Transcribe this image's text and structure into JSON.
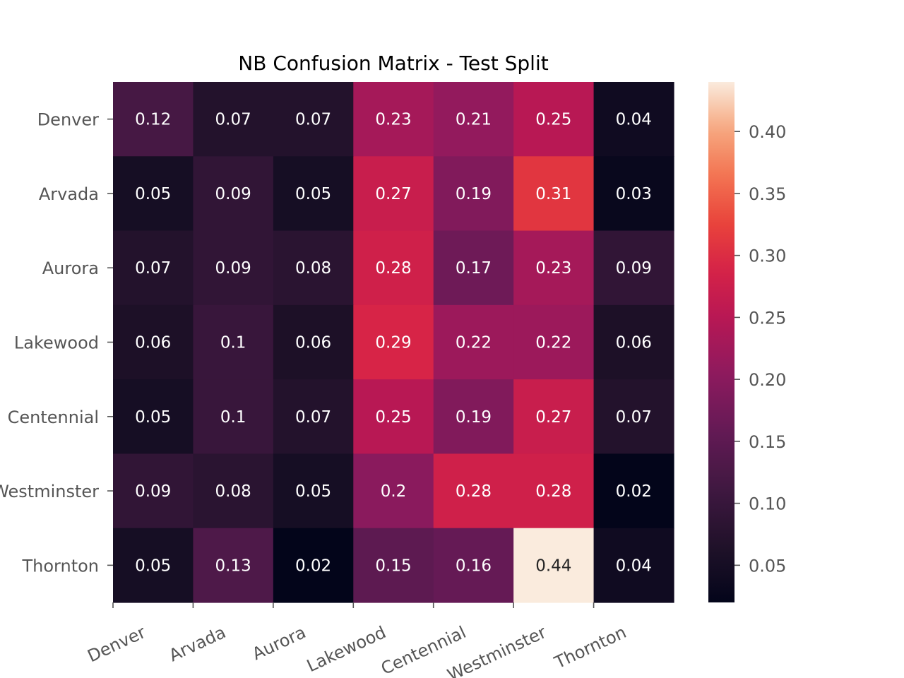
{
  "chart_data": {
    "type": "heatmap",
    "title": "NB Confusion Matrix - Test Split",
    "xlabel": "",
    "ylabel": "",
    "x_categories": [
      "Denver",
      "Arvada",
      "Aurora",
      "Lakewood",
      "Centennial",
      "Westminster",
      "Thornton"
    ],
    "y_categories": [
      "Denver",
      "Arvada",
      "Aurora",
      "Lakewood",
      "Centennial",
      "Westminster",
      "Thornton"
    ],
    "values": [
      [
        0.12,
        0.07,
        0.07,
        0.23,
        0.21,
        0.25,
        0.04
      ],
      [
        0.05,
        0.09,
        0.05,
        0.27,
        0.19,
        0.31,
        0.03
      ],
      [
        0.07,
        0.09,
        0.08,
        0.28,
        0.17,
        0.23,
        0.09
      ],
      [
        0.06,
        0.1,
        0.06,
        0.29,
        0.22,
        0.22,
        0.06
      ],
      [
        0.05,
        0.1,
        0.07,
        0.25,
        0.19,
        0.27,
        0.07
      ],
      [
        0.09,
        0.08,
        0.05,
        0.2,
        0.28,
        0.28,
        0.02
      ],
      [
        0.05,
        0.13,
        0.02,
        0.15,
        0.16,
        0.44,
        0.04
      ]
    ],
    "annotations": [
      [
        "0.12",
        "0.07",
        "0.07",
        "0.23",
        "0.21",
        "0.25",
        "0.04"
      ],
      [
        "0.05",
        "0.09",
        "0.05",
        "0.27",
        "0.19",
        "0.31",
        "0.03"
      ],
      [
        "0.07",
        "0.09",
        "0.08",
        "0.28",
        "0.17",
        "0.23",
        "0.09"
      ],
      [
        "0.06",
        "0.1",
        "0.06",
        "0.29",
        "0.22",
        "0.22",
        "0.06"
      ],
      [
        "0.05",
        "0.1",
        "0.07",
        "0.25",
        "0.19",
        "0.27",
        "0.07"
      ],
      [
        "0.09",
        "0.08",
        "0.05",
        "0.2",
        "0.28",
        "0.28",
        "0.02"
      ],
      [
        "0.05",
        "0.13",
        "0.02",
        "0.15",
        "0.16",
        "0.44",
        "0.04"
      ]
    ],
    "colormap": "rocket",
    "color_range": [
      0.02,
      0.44
    ],
    "colorbar_ticks": [
      0.05,
      0.1,
      0.15,
      0.2,
      0.25,
      0.3,
      0.35,
      0.4
    ],
    "colorbar_tick_labels": [
      "0.05",
      "0.10",
      "0.15",
      "0.20",
      "0.25",
      "0.30",
      "0.35",
      "0.40"
    ],
    "x_tick_rotation": "rotated ~25°",
    "grid": false
  }
}
